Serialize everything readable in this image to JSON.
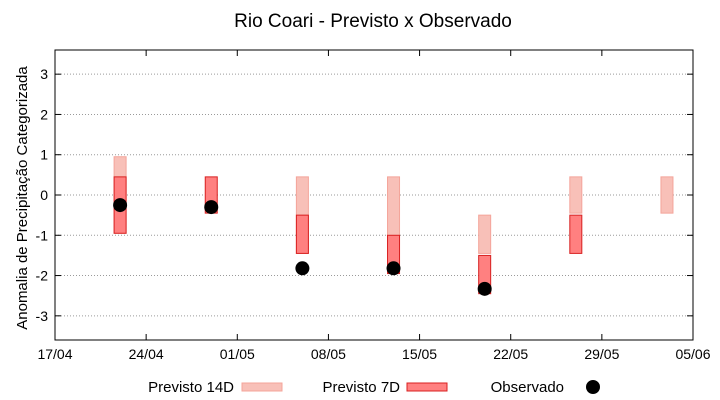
{
  "chart_data": {
    "type": "range-bar-scatter",
    "title": "Rio Coari - Previsto x Observado",
    "ylabel": "Anomalia de Precipitação Categorizada",
    "xlabel": "",
    "ylim": [
      -3.6,
      3.6
    ],
    "yticks": [
      -3,
      -2,
      -1,
      0,
      1,
      2,
      3
    ],
    "xlim": [
      "2024-04-17",
      "2024-05-06"
    ],
    "xticks": [
      {
        "date": "2024-04-17",
        "label": "17/04"
      },
      {
        "date": "2024-04-24",
        "label": "24/04"
      },
      {
        "date": "2024-05-01",
        "label": "01/05"
      },
      {
        "date": "2024-05-08",
        "label": "08/05"
      },
      {
        "date": "2024-05-15",
        "label": "15/05"
      },
      {
        "date": "2024-05-22",
        "label": "22/05"
      },
      {
        "date": "2024-05-29",
        "label": "29/05"
      },
      {
        "date": "2024-06-05",
        "label": "05/06"
      }
    ],
    "grid": "horizontal-dotted",
    "legend_position": "bottom",
    "series": [
      {
        "name": "Previsto 14D",
        "kind": "range",
        "color": "#f8c0b8",
        "edge": "#f4a49a",
        "points": [
          {
            "date": "2024-04-22",
            "low": -0.95,
            "high": 0.95
          },
          {
            "date": "2024-05-06",
            "low": -1.45,
            "high": 0.45
          },
          {
            "date": "2024-05-13",
            "low": -1.95,
            "high": 0.45
          },
          {
            "date": "2024-05-20",
            "low": -1.45,
            "high": -0.5
          },
          {
            "date": "2024-05-27",
            "low": -0.45,
            "high": 0.45
          },
          {
            "date": "2024-06-03",
            "low": -0.45,
            "high": 0.45
          }
        ]
      },
      {
        "name": "Previsto 7D",
        "kind": "range",
        "color": "#ff8080",
        "edge": "#d82020",
        "points": [
          {
            "date": "2024-04-22",
            "low": -0.95,
            "high": 0.45
          },
          {
            "date": "2024-04-29",
            "low": -0.45,
            "high": 0.45
          },
          {
            "date": "2024-05-06",
            "low": -1.45,
            "high": -0.5
          },
          {
            "date": "2024-05-13",
            "low": -1.95,
            "high": -1.0
          },
          {
            "date": "2024-05-20",
            "low": -2.45,
            "high": -1.5
          },
          {
            "date": "2024-05-27",
            "low": -1.45,
            "high": -0.5
          }
        ]
      },
      {
        "name": "Observado",
        "kind": "point",
        "color": "#000000",
        "points": [
          {
            "date": "2024-04-22",
            "value": -0.25
          },
          {
            "date": "2024-04-29",
            "value": -0.3
          },
          {
            "date": "2024-05-06",
            "value": -1.82
          },
          {
            "date": "2024-05-13",
            "value": -1.82
          },
          {
            "date": "2024-05-20",
            "value": -2.33
          }
        ]
      }
    ]
  }
}
